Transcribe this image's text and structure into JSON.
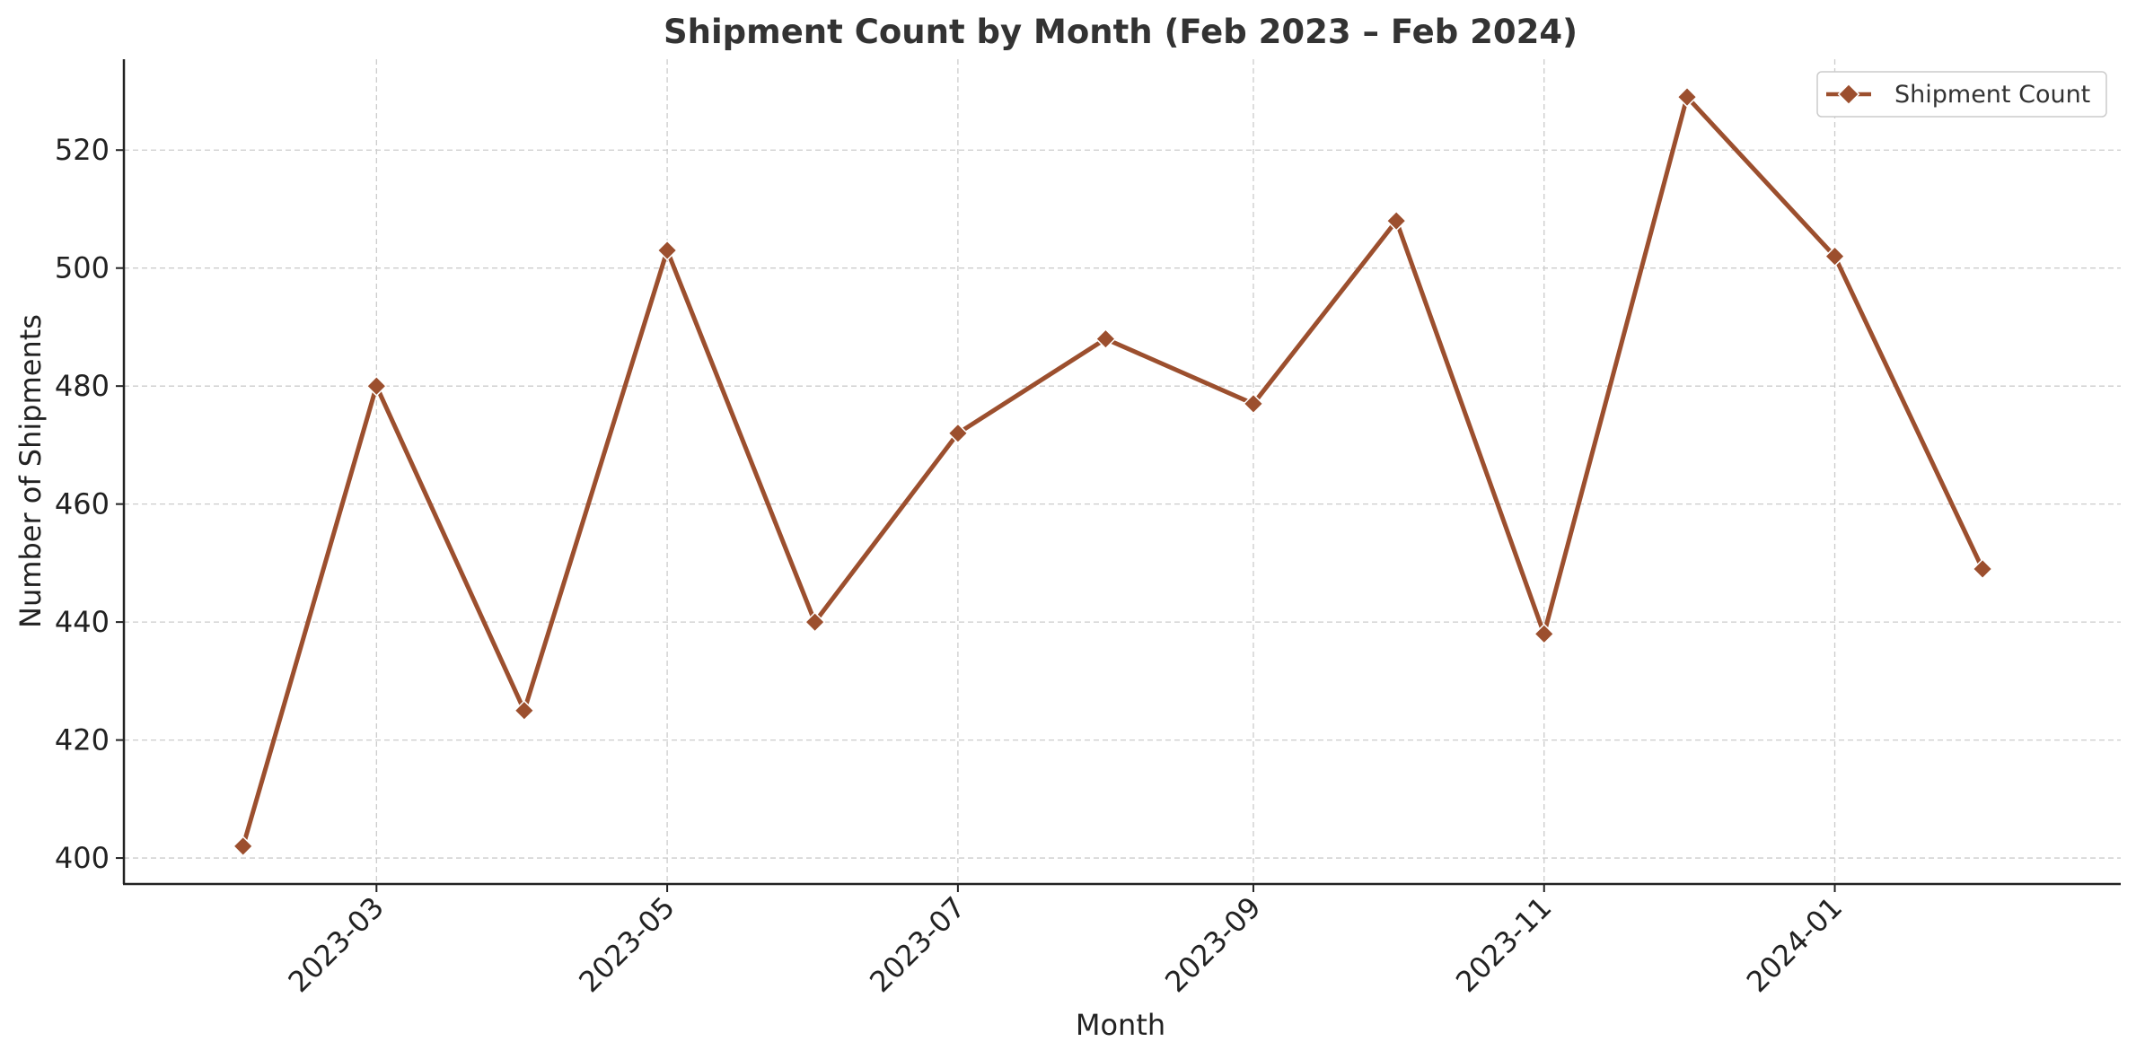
{
  "chart_data": {
    "type": "line",
    "title": "Shipment Count by Month (Feb 2023 – Feb 2024)",
    "xlabel": "Month",
    "ylabel": "Number of Shipments",
    "x": [
      "2023-02",
      "2023-03",
      "2023-04",
      "2023-05",
      "2023-06",
      "2023-07",
      "2023-08",
      "2023-09",
      "2023-10",
      "2023-11",
      "2023-12",
      "2024-01",
      "2024-02"
    ],
    "series": [
      {
        "name": "Shipment Count",
        "color": "#9c4f2e",
        "marker": "diamond",
        "values": [
          402,
          480,
          425,
          503,
          440,
          472,
          488,
          477,
          508,
          438,
          529,
          502,
          449
        ]
      }
    ],
    "x_ticks": [
      "2023-03",
      "2023-05",
      "2023-07",
      "2023-09",
      "2023-11",
      "2024-01"
    ],
    "y_ticks": [
      400,
      420,
      440,
      460,
      480,
      500,
      520
    ],
    "ylim": [
      395.6,
      535.4
    ],
    "xlim": [
      "2023-01-07",
      "2024-03-01"
    ],
    "grid": true,
    "legend_position": "top-right"
  }
}
